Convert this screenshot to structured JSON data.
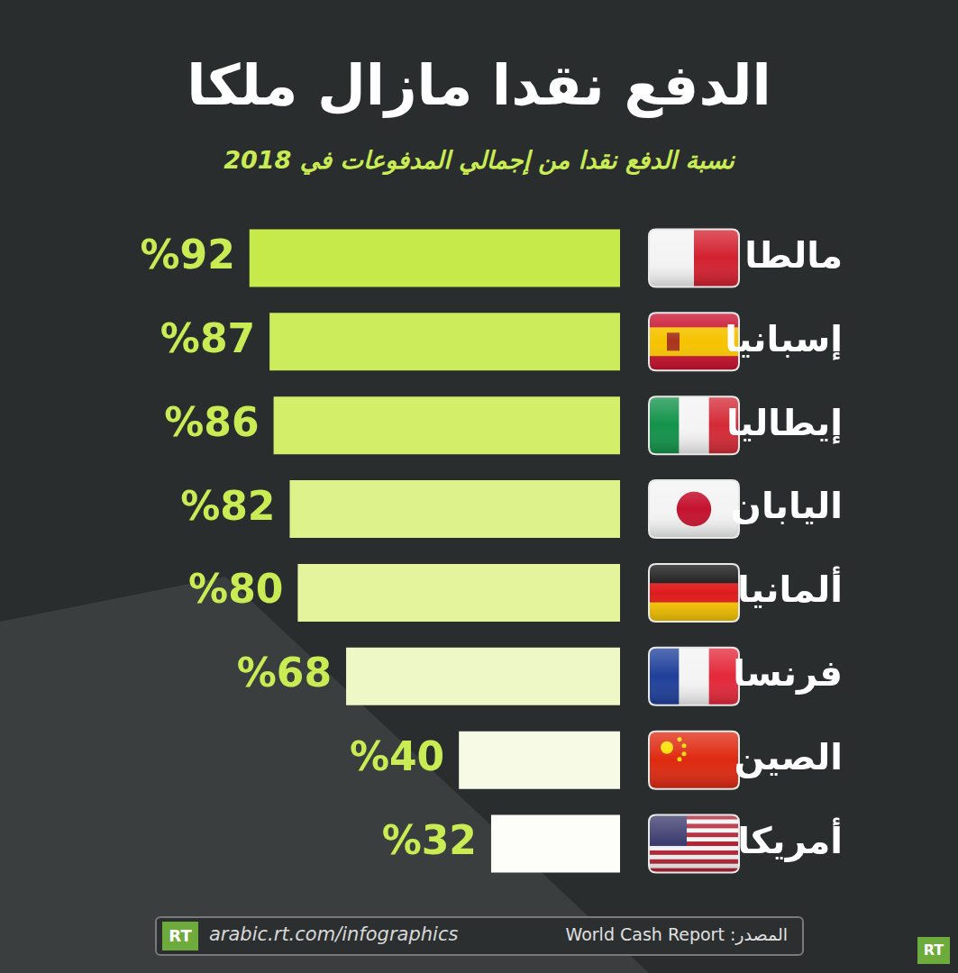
{
  "chart_data": {
    "type": "bar",
    "orientation": "horizontal",
    "title": "الدفع نقدا مازال ملكا",
    "subtitle": "نسبة الدفع نقدا من إجمالي المدفوعات في 2018",
    "categories": [
      "مالطا",
      "إسبانيا",
      "إيطاليا",
      "اليابان",
      "ألمانيا",
      "فرنسا",
      "الصين",
      "أمريكا"
    ],
    "values": [
      92,
      87,
      86,
      82,
      80,
      68,
      40,
      32
    ],
    "value_labels": [
      "%92",
      "%87",
      "%86",
      "%82",
      "%80",
      "%68",
      "%40",
      "%32"
    ],
    "data_labels": true,
    "colors": [
      "#c6ea4a",
      "#cdec5b",
      "#d3ef6a",
      "#ddf28a",
      "#e4f49d",
      "#eef8c6",
      "#f7fbe6",
      "#fdfefa"
    ],
    "xlim": [
      0,
      100
    ],
    "grid": false,
    "tick_labels": false
  },
  "source": "المصدر: World Cash Report",
  "url": "arabic.rt.com/infographics",
  "logo": "RT"
}
